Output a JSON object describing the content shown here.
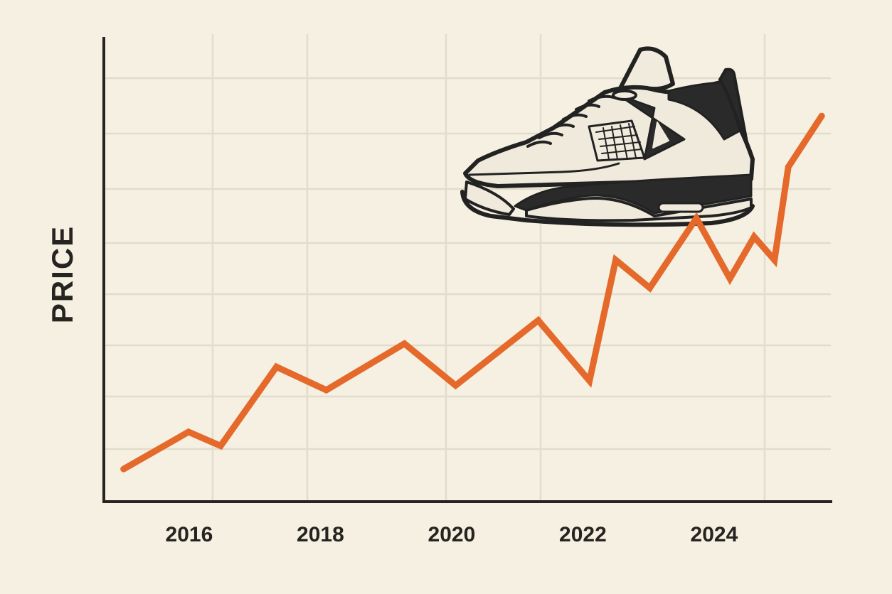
{
  "chart_data": {
    "type": "line",
    "title": "",
    "xlabel": "",
    "ylabel": "PRICE",
    "x_ticks": [
      2016,
      2018,
      2020,
      2022,
      2024
    ],
    "xlim": [
      2014.7,
      2025.8
    ],
    "ylim": [
      0,
      10
    ],
    "grid": true,
    "legend": "none",
    "series": [
      {
        "color": "#e4692a",
        "points": [
          {
            "x": 2015.0,
            "y": 0.7
          },
          {
            "x": 2015.99,
            "y": 1.5
          },
          {
            "x": 2016.48,
            "y": 1.2
          },
          {
            "x": 2017.33,
            "y": 2.9
          },
          {
            "x": 2018.09,
            "y": 2.4
          },
          {
            "x": 2019.28,
            "y": 3.4
          },
          {
            "x": 2020.06,
            "y": 2.5
          },
          {
            "x": 2021.32,
            "y": 3.9
          },
          {
            "x": 2022.1,
            "y": 2.6
          },
          {
            "x": 2022.5,
            "y": 5.2
          },
          {
            "x": 2023.02,
            "y": 4.6
          },
          {
            "x": 2023.73,
            "y": 6.1
          },
          {
            "x": 2024.24,
            "y": 4.8
          },
          {
            "x": 2024.61,
            "y": 5.7
          },
          {
            "x": 2024.92,
            "y": 5.2
          },
          {
            "x": 2025.13,
            "y": 7.2
          },
          {
            "x": 2025.64,
            "y": 8.3
          }
        ]
      }
    ],
    "illustration": {
      "icon": "sneaker-icon",
      "colors": [
        "#222222",
        "#efeadc",
        "#f6f0e2"
      ]
    }
  }
}
